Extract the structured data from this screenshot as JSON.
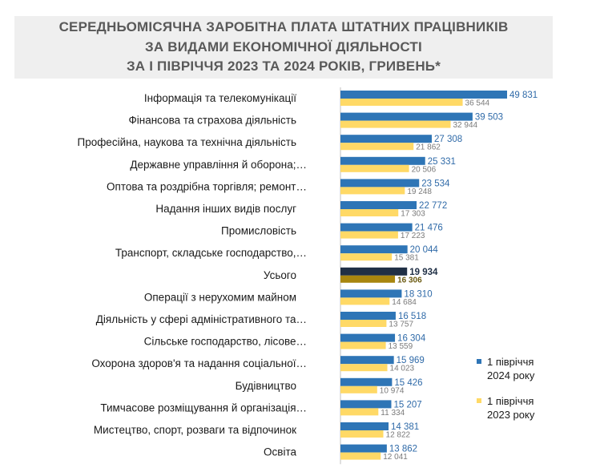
{
  "header": {
    "title_line1": "СЕРЕДНЬОМІСЯЧНА ЗАРОБІТНА ПЛАТА ШТАТНИХ ПРАЦІВНИКІВ",
    "title_line2": "ЗА ВИДАМИ ЕКОНОМІЧНОЇ ДІЯЛЬНОСТІ",
    "title_line3": "ЗА І ПІВРІЧЧЯ 2023 ТА 2024 РОКІВ, ГРИВЕНЬ*"
  },
  "chart_data": {
    "type": "bar",
    "orientation": "horizontal",
    "title": "СЕРЕДНЬОМІСЯЧНА ЗАРОБІТНА ПЛАТА ШТАТНИХ ПРАЦІВНИКІВ ЗА ВИДАМИ ЕКОНОМІЧНОЇ ДІЯЛЬНОСТІ ЗА І ПІВРІЧЧЯ 2023 ТА 2024 РОКІВ, ГРИВЕНЬ*",
    "categories": [
      "Інформація та телекомунікації",
      "Фінансова та страхова діяльність",
      "Професійна, наукова та технічна діяльність",
      "Державне управління й оборона;…",
      "Оптова та роздрібна торгівля; ремонт…",
      "Надання інших видів послуг",
      "Промисловість",
      "Транспорт, складське господарство,…",
      "Усього",
      "Операції з нерухомим майном",
      "Діяльність у сфері адміністративного та…",
      "Сільське господарство, лісове…",
      "Охорона здоров'я та надання соціальної…",
      "Будівництво",
      "Тимчасове розміщування й організація…",
      "Мистецтво, спорт, розваги та відпочинок",
      "Освіта"
    ],
    "highlight_category": "Усього",
    "series": [
      {
        "name": "1 півріччя 2024 року",
        "color": "#2e75b6",
        "highlight_color": "#1f2f45",
        "values": [
          49831,
          39503,
          27308,
          25331,
          23534,
          22772,
          21476,
          20044,
          19934,
          18310,
          16518,
          16304,
          15969,
          15426,
          15207,
          14381,
          13862
        ],
        "labels": [
          "49 831",
          "39 503",
          "27 308",
          "25 331",
          "23 534",
          "22 772",
          "21 476",
          "20 044",
          "19 934",
          "18 310",
          "16 518",
          "16 304",
          "15 969",
          "15 426",
          "15 207",
          "14 381",
          "13 862"
        ]
      },
      {
        "name": "1 півріччя 2023 року",
        "color": "#ffd966",
        "highlight_color": "#a8860f",
        "values": [
          36544,
          32944,
          21862,
          20506,
          19248,
          17303,
          17223,
          15381,
          16306,
          14684,
          13757,
          13559,
          14023,
          10974,
          11334,
          12822,
          12041
        ],
        "labels": [
          "36 544",
          "32 944",
          "21 862",
          "20 506",
          "19 248",
          "17 303",
          "17 223",
          "15 381",
          "16 306",
          "14 684",
          "13 757",
          "13 559",
          "14 023",
          "10 974",
          "11 334",
          "12 822",
          "12 041"
        ]
      }
    ],
    "legend": {
      "position": "right",
      "items": [
        {
          "line1": "1 півріччя",
          "line2": "2024 року",
          "color": "#2e75b6"
        },
        {
          "line1": "1 півріччя",
          "line2": "2023 року",
          "color": "#ffd966"
        }
      ]
    },
    "xlim": [
      0,
      50000
    ],
    "xlabel": "",
    "ylabel": "",
    "grid": false
  }
}
